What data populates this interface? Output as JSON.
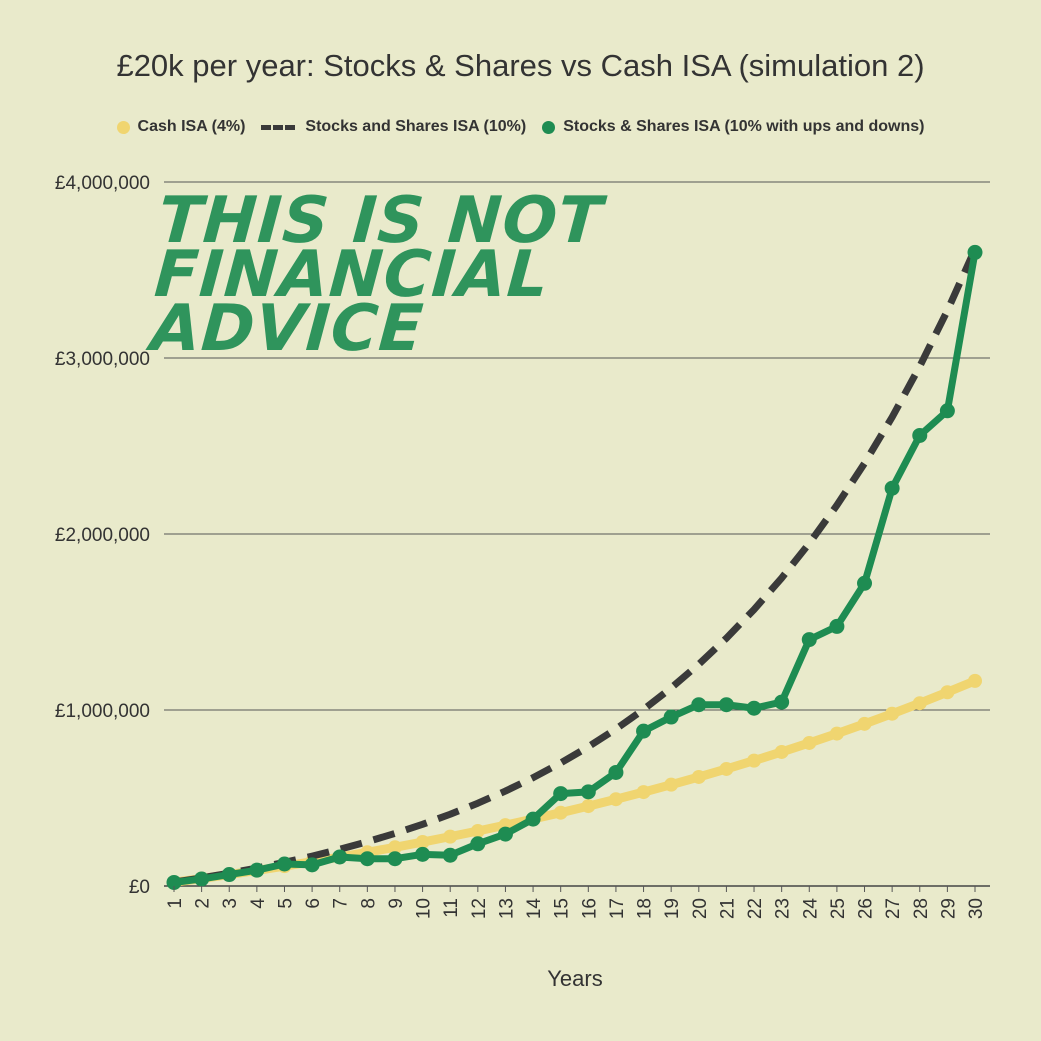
{
  "colors": {
    "background": "#e9eacb",
    "cash": "#f0d570",
    "stocks_smooth": "#3a3a3a",
    "stocks_volatile": "#1e8c52",
    "watermark": "#1e8c52"
  },
  "watermark": {
    "lines": [
      "THIS IS NOT",
      "FINANCIAL",
      "ADVICE"
    ]
  },
  "chart_data": {
    "type": "line",
    "title": "£20k per year: Stocks & Shares vs Cash ISA (simulation 2)",
    "xlabel": "Years",
    "ylabel": "",
    "legend_position": "top",
    "grid": true,
    "ylim": [
      0,
      4000000
    ],
    "y_ticks": [
      {
        "value": 0,
        "label": "£0"
      },
      {
        "value": 1000000,
        "label": "£1,000,000"
      },
      {
        "value": 2000000,
        "label": "£2,000,000"
      },
      {
        "value": 3000000,
        "label": "£3,000,000"
      },
      {
        "value": 4000000,
        "label": "£4,000,000"
      }
    ],
    "x": [
      1,
      2,
      3,
      4,
      5,
      6,
      7,
      8,
      9,
      10,
      11,
      12,
      13,
      14,
      15,
      16,
      17,
      18,
      19,
      20,
      21,
      22,
      23,
      24,
      25,
      26,
      27,
      28,
      29,
      30
    ],
    "series": [
      {
        "name": "Cash ISA (4%)",
        "style": "line-markers",
        "values": [
          20800,
          42400,
          65000,
          88300,
          112700,
          138000,
          164300,
          191600,
          220000,
          249700,
          280500,
          312500,
          345800,
          380500,
          416500,
          454000,
          493000,
          533500,
          575700,
          619400,
          665000,
          712400,
          761600,
          812800,
          866000,
          921300,
          978900,
          1038700,
          1100900,
          1165500
        ]
      },
      {
        "name": "Stocks and Shares ISA (10%)",
        "style": "dashed",
        "values": [
          22000,
          46200,
          72800,
          102100,
          134300,
          169700,
          208700,
          251500,
          298700,
          350600,
          407700,
          470500,
          539500,
          615500,
          699000,
          790900,
          892000,
          1003200,
          1125500,
          1260000,
          1408000,
          1570800,
          1749900,
          1946900,
          2163500,
          2401900,
          2664100,
          2952500,
          3269700,
          3618700
        ]
      },
      {
        "name": "Stocks & Shares ISA (10% with ups and downs)",
        "style": "line-markers",
        "values": [
          20000,
          40000,
          65000,
          90000,
          125000,
          120000,
          165000,
          155000,
          155000,
          180000,
          175000,
          240000,
          295000,
          380000,
          525000,
          535000,
          645000,
          880000,
          960000,
          1030000,
          1030000,
          1010000,
          1045000,
          1400000,
          1475000,
          1720000,
          2260000,
          2560000,
          2700000,
          3600000
        ]
      }
    ]
  }
}
